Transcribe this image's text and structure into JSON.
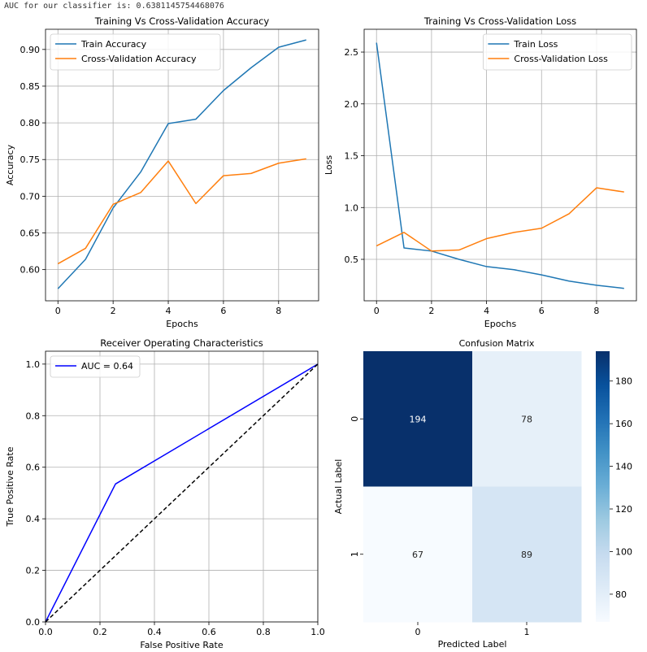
{
  "output_line": "AUC for our classifier is: 0.6381145754468076",
  "colors": {
    "train": "#1f77b4",
    "cv": "#ff7f0e",
    "roc": "#0000ff",
    "diagonal": "#000000",
    "grid": "#b0b0b0",
    "cmap_low": "#f7fbff",
    "cmap_high": "#08306b"
  },
  "chart_data": [
    {
      "type": "line",
      "title": "Training Vs Cross-Validation Accuracy",
      "xlabel": "Epochs",
      "ylabel": "Accuracy",
      "x": [
        0,
        1,
        2,
        3,
        4,
        5,
        6,
        7,
        8,
        9
      ],
      "xlim": [
        -0.45,
        9.45
      ],
      "ylim": [
        0.5575,
        0.9275
      ],
      "xticks": [
        0,
        2,
        4,
        6,
        8
      ],
      "yticks": [
        0.6,
        0.65,
        0.7,
        0.75,
        0.8,
        0.85,
        0.9
      ],
      "ytick_labels": [
        "0.60",
        "0.65",
        "0.70",
        "0.75",
        "0.80",
        "0.85",
        "0.90"
      ],
      "grid": true,
      "legend": "upper-left",
      "series": [
        {
          "name": "Train Accuracy",
          "color": "#1f77b4",
          "values": [
            0.574,
            0.614,
            0.684,
            0.733,
            0.799,
            0.805,
            0.844,
            0.875,
            0.903,
            0.913
          ]
        },
        {
          "name": "Cross-Validation Accuracy",
          "color": "#ff7f0e",
          "values": [
            0.608,
            0.629,
            0.689,
            0.705,
            0.748,
            0.69,
            0.728,
            0.731,
            0.745,
            0.751
          ]
        }
      ]
    },
    {
      "type": "line",
      "title": "Training Vs Cross-Validation Loss",
      "xlabel": "Epochs",
      "ylabel": "Loss",
      "x": [
        0,
        1,
        2,
        3,
        4,
        5,
        6,
        7,
        8,
        9
      ],
      "xlim": [
        -0.45,
        9.45
      ],
      "ylim": [
        0.1,
        2.72
      ],
      "xticks": [
        0,
        2,
        4,
        6,
        8
      ],
      "yticks": [
        0.5,
        1.0,
        1.5,
        2.0,
        2.5
      ],
      "ytick_labels": [
        "0.5",
        "1.0",
        "1.5",
        "2.0",
        "2.5"
      ],
      "grid": true,
      "legend": "upper-right",
      "series": [
        {
          "name": "Train Loss",
          "color": "#1f77b4",
          "values": [
            2.59,
            0.61,
            0.58,
            0.5,
            0.43,
            0.4,
            0.35,
            0.29,
            0.25,
            0.22
          ]
        },
        {
          "name": "Cross-Validation Loss",
          "color": "#ff7f0e",
          "values": [
            0.63,
            0.76,
            0.58,
            0.59,
            0.7,
            0.76,
            0.8,
            0.94,
            1.19,
            1.15
          ]
        }
      ]
    },
    {
      "type": "line",
      "title": "Receiver Operating Characteristics",
      "xlabel": "False Positive Rate",
      "ylabel": "True Positive Rate",
      "xlim": [
        0,
        1
      ],
      "ylim": [
        0,
        1.05
      ],
      "xticks": [
        0.0,
        0.2,
        0.4,
        0.6,
        0.8,
        1.0
      ],
      "xtick_labels": [
        "0.0",
        "0.2",
        "0.4",
        "0.6",
        "0.8",
        "1.0"
      ],
      "yticks": [
        0.0,
        0.2,
        0.4,
        0.6,
        0.8,
        1.0
      ],
      "ytick_labels": [
        "0.0",
        "0.2",
        "0.4",
        "0.6",
        "0.8",
        "1.0"
      ],
      "grid": true,
      "legend": "upper-left",
      "series": [
        {
          "name": "AUC = 0.64",
          "color": "#0000ff",
          "x": [
            0.0,
            0.257,
            1.0
          ],
          "y": [
            0.0,
            0.535,
            1.0
          ]
        },
        {
          "color": "#000000",
          "dashed": true,
          "x": [
            0.0,
            1.0
          ],
          "y": [
            0.0,
            1.0
          ]
        }
      ]
    },
    {
      "type": "heatmap",
      "title": "Confusion Matrix",
      "xlabel": "Predicted Label",
      "ylabel": "Actual Label",
      "x_categories": [
        "0",
        "1"
      ],
      "y_categories": [
        "0",
        "1"
      ],
      "values": [
        [
          194,
          78
        ],
        [
          67,
          89
        ]
      ],
      "colorbar": {
        "ticks": [
          80,
          100,
          120,
          140,
          160,
          180
        ],
        "range": [
          67,
          194
        ]
      }
    }
  ]
}
